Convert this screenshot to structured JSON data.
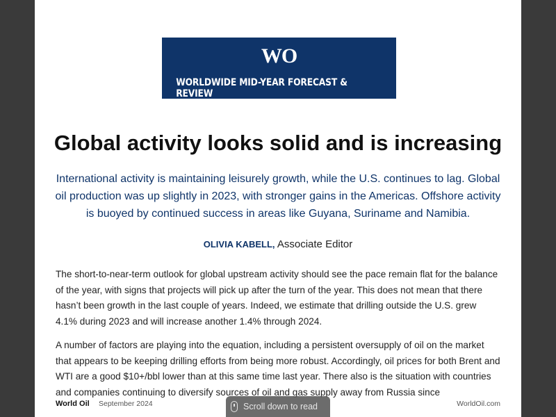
{
  "banner": {
    "logo": "WO",
    "subtitle": "WORLDWIDE MID-YEAR FORECAST & REVIEW"
  },
  "article": {
    "headline": "Global activity looks solid and is increasing",
    "deck": "International activity is maintaining leisurely growth, while the U.S. continues to lag. Global oil production was up slightly in 2023, with stronger gains in the Americas. Offshore activity is buoyed by continued success in areas like Guyana, Suriname and Namibia.",
    "author_name": "OLIVIA KABELL,",
    "author_title": " Associate Editor",
    "paragraphs": [
      "The short-to-near-term outlook for global upstream activity should see the pace remain flat for the balance of the year, with signs that projects will pick up after the turn of the year. This does not mean that there hasn’t been growth in the last couple of years. Indeed, we estimate that drilling outside the U.S. grew 4.1% during 2023 and will increase another 1.4% through 2024.",
      "A number of factors are playing into the equation, including a persistent oversupply of oil on the market that appears to be keeping drilling efforts from being more robust. Accordingly, oil prices for both Brent and WTI are a good $10+/bbl lower than at this same time last year. There also is the situation with countries and companies continuing to diversify sources of oil and gas supply away from Russia since"
    ]
  },
  "footer": {
    "brand": "World Oil",
    "date": "September 2024",
    "site": "WorldOil.com"
  },
  "scroll_hint": {
    "label": "Scroll down to read",
    "icon": "mouse-icon"
  },
  "colors": {
    "brand_navy": "#0f3469",
    "accent_gold": "#c9882e",
    "viewer_background": "#3a3a3a"
  }
}
